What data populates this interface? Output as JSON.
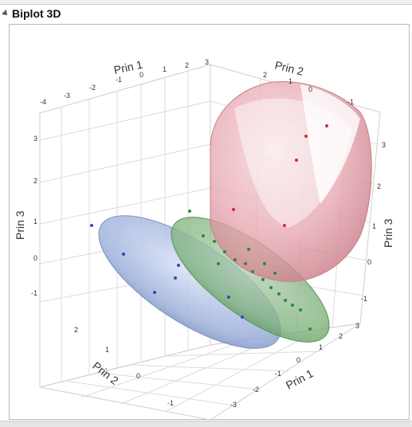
{
  "header": {
    "title": "Biplot 3D"
  },
  "axes": {
    "top_left": {
      "label": "Prin 1",
      "ticks": [
        "-4",
        "-3",
        "-2",
        "-1",
        "0",
        "1",
        "2",
        "3"
      ]
    },
    "top_right": {
      "label": "Prin 2",
      "ticks": [
        "2",
        "1",
        "0",
        "-1"
      ]
    },
    "left": {
      "label": "Prin 3",
      "ticks": [
        "3",
        "2",
        "1",
        "0",
        "-1"
      ]
    },
    "right": {
      "label": "Prin 3",
      "ticks": [
        "3",
        "2",
        "1",
        "0",
        "-1"
      ]
    },
    "bottom_left": {
      "label": "Prin 2",
      "ticks": [
        "2",
        "1",
        "0",
        "-1"
      ]
    },
    "bottom_right": {
      "label": "Prin 1",
      "ticks": [
        "3",
        "2",
        "1",
        "0",
        "-1",
        "-2",
        "-3"
      ]
    }
  },
  "colors": {
    "red": "#e8909c",
    "green": "#7fc57f",
    "blue": "#8da4d8"
  }
}
